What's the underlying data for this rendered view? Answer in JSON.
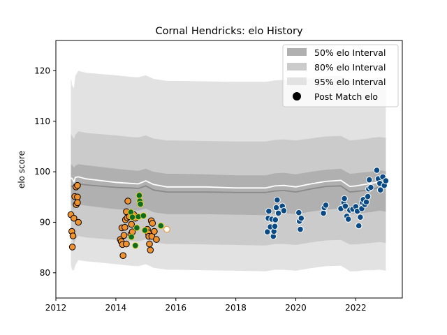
{
  "chart_data": {
    "type": "scatter",
    "title": "Cornal Hendricks: elo History",
    "xlabel": "",
    "ylabel": "elo score",
    "xlim": [
      2012.0,
      2023.55
    ],
    "ylim": [
      75.0,
      126.0
    ],
    "x_ticks": [
      2012,
      2014,
      2016,
      2018,
      2020,
      2022
    ],
    "x_tick_labels": [
      "2012",
      "2014",
      "2016",
      "2018",
      "2020",
      "2022"
    ],
    "y_ticks": [
      80,
      90,
      100,
      110,
      120
    ],
    "y_tick_labels": [
      "80",
      "90",
      "100",
      "110",
      "120"
    ],
    "legend_position": "top-right",
    "legend": [
      {
        "label": "50% elo Interval",
        "kind": "band",
        "color": "#b0b0b0"
      },
      {
        "label": "80% elo Interval",
        "kind": "band",
        "color": "#cbcbcb"
      },
      {
        "label": "95% elo Interval",
        "kind": "band",
        "color": "#e2e2e2"
      },
      {
        "label": "Post Match elo",
        "kind": "marker",
        "color": "#000000"
      }
    ],
    "bands": {
      "x": [
        2012.5,
        2012.55,
        2012.6,
        2012.65,
        2012.75,
        2013.0,
        2014.0,
        2014.5,
        2014.75,
        2015.0,
        2015.25,
        2015.7,
        2016.0,
        2017.0,
        2018.0,
        2019.0,
        2019.3,
        2019.6,
        2020.0,
        2020.5,
        2021.0,
        2021.5,
        2021.7,
        2021.8,
        2022.0,
        2022.3,
        2022.5,
        2022.8,
        2023.0
      ],
      "median": [
        97.2,
        97.1,
        96.9,
        97.4,
        97.6,
        97.4,
        96.9,
        96.8,
        96.7,
        97.2,
        96.4,
        96.0,
        96.0,
        96.0,
        95.9,
        95.9,
        96.2,
        96.3,
        96.0,
        96.6,
        97.1,
        97.2,
        96.4,
        96.0,
        96.1,
        96.3,
        96.4,
        97.0,
        96.8
      ],
      "mean": [
        98.8,
        98.6,
        98.0,
        98.9,
        99.0,
        98.6,
        97.9,
        97.7,
        97.6,
        98.2,
        97.5,
        97.0,
        97.0,
        97.0,
        96.8,
        96.8,
        97.2,
        97.3,
        97.0,
        97.6,
        98.1,
        98.3,
        97.5,
        97.1,
        97.2,
        97.5,
        97.7,
        98.0,
        97.6
      ],
      "p50": [
        [
          93.5,
          101.5
        ],
        [
          93.2,
          101.3
        ],
        [
          92.6,
          100.8
        ],
        [
          93.2,
          101.2
        ],
        [
          93.5,
          101.5
        ],
        [
          93.3,
          101.3
        ],
        [
          92.6,
          100.6
        ],
        [
          92.4,
          100.3
        ],
        [
          92.3,
          100.2
        ],
        [
          92.7,
          100.6
        ],
        [
          92.0,
          100.0
        ],
        [
          91.6,
          99.6
        ],
        [
          91.6,
          99.6
        ],
        [
          91.6,
          99.5
        ],
        [
          91.5,
          99.3
        ],
        [
          91.4,
          99.3
        ],
        [
          91.7,
          99.7
        ],
        [
          91.8,
          99.8
        ],
        [
          91.6,
          99.5
        ],
        [
          92.1,
          100.0
        ],
        [
          92.5,
          100.4
        ],
        [
          92.7,
          100.6
        ],
        [
          92.0,
          99.9
        ],
        [
          91.6,
          99.6
        ],
        [
          91.7,
          99.7
        ],
        [
          91.9,
          99.9
        ],
        [
          92.0,
          100.0
        ],
        [
          92.3,
          100.3
        ],
        [
          92.1,
          100.1
        ]
      ],
      "p80": [
        [
          87.5,
          107.5
        ],
        [
          86.5,
          107.0
        ],
        [
          85.5,
          106.5
        ],
        [
          86.5,
          107.3
        ],
        [
          87.3,
          108.0
        ],
        [
          87.0,
          107.7
        ],
        [
          86.5,
          107.2
        ],
        [
          86.3,
          106.9
        ],
        [
          86.2,
          106.8
        ],
        [
          86.6,
          107.2
        ],
        [
          86.0,
          106.6
        ],
        [
          85.7,
          106.2
        ],
        [
          85.7,
          106.2
        ],
        [
          85.6,
          106.1
        ],
        [
          85.5,
          106.0
        ],
        [
          85.4,
          106.0
        ],
        [
          85.7,
          106.3
        ],
        [
          85.7,
          106.4
        ],
        [
          85.5,
          106.2
        ],
        [
          86.0,
          106.6
        ],
        [
          86.4,
          107.0
        ],
        [
          86.5,
          107.1
        ],
        [
          85.9,
          106.5
        ],
        [
          85.6,
          106.2
        ],
        [
          85.6,
          106.3
        ],
        [
          85.8,
          106.5
        ],
        [
          85.9,
          106.7
        ],
        [
          86.1,
          106.9
        ],
        [
          85.9,
          106.7
        ]
      ],
      "p95": [
        [
          81.5,
          118.5
        ],
        [
          80.5,
          117.0
        ],
        [
          80.5,
          116.5
        ],
        [
          81.5,
          119.0
        ],
        [
          82.5,
          120.0
        ],
        [
          82.3,
          119.6
        ],
        [
          81.7,
          119.1
        ],
        [
          81.4,
          118.8
        ],
        [
          81.3,
          118.7
        ],
        [
          81.7,
          119.1
        ],
        [
          81.0,
          118.4
        ],
        [
          80.6,
          118.0
        ],
        [
          80.6,
          118.0
        ],
        [
          80.5,
          117.9
        ],
        [
          80.4,
          117.8
        ],
        [
          80.3,
          117.8
        ],
        [
          80.6,
          118.1
        ],
        [
          80.6,
          118.2
        ],
        [
          80.4,
          118.0
        ],
        [
          80.9,
          118.5
        ],
        [
          81.3,
          118.9
        ],
        [
          81.4,
          119.0
        ],
        [
          80.7,
          118.4
        ],
        [
          80.3,
          118.0
        ],
        [
          80.3,
          118.1
        ],
        [
          80.5,
          118.3
        ],
        [
          80.5,
          118.5
        ],
        [
          80.6,
          118.7
        ],
        [
          80.4,
          118.5
        ]
      ]
    },
    "points": [
      {
        "x": 2012.5,
        "y": 91.5,
        "color": "orange"
      },
      {
        "x": 2012.53,
        "y": 88.2,
        "color": "orange"
      },
      {
        "x": 2012.55,
        "y": 85.1,
        "color": "orange"
      },
      {
        "x": 2012.57,
        "y": 87.3,
        "color": "orange"
      },
      {
        "x": 2012.6,
        "y": 90.8,
        "color": "orange"
      },
      {
        "x": 2012.63,
        "y": 95.1,
        "color": "orange"
      },
      {
        "x": 2012.67,
        "y": 97.0,
        "color": "orange"
      },
      {
        "x": 2012.68,
        "y": 93.5,
        "color": "orange"
      },
      {
        "x": 2012.72,
        "y": 95.0,
        "color": "orange"
      },
      {
        "x": 2012.72,
        "y": 93.9,
        "color": "orange"
      },
      {
        "x": 2012.72,
        "y": 97.3,
        "color": "orange"
      },
      {
        "x": 2012.75,
        "y": 90.0,
        "color": "orange"
      },
      {
        "x": 2014.15,
        "y": 86.6,
        "color": "orange"
      },
      {
        "x": 2014.18,
        "y": 86.2,
        "color": "orange"
      },
      {
        "x": 2014.2,
        "y": 88.9,
        "color": "orange"
      },
      {
        "x": 2014.22,
        "y": 85.6,
        "color": "orange"
      },
      {
        "x": 2014.24,
        "y": 83.4,
        "color": "orange"
      },
      {
        "x": 2014.27,
        "y": 87.4,
        "color": "orange"
      },
      {
        "x": 2014.3,
        "y": 89.0,
        "color": "orange"
      },
      {
        "x": 2014.32,
        "y": 90.5,
        "color": "orange"
      },
      {
        "x": 2014.35,
        "y": 85.7,
        "color": "orange"
      },
      {
        "x": 2014.35,
        "y": 92.1,
        "color": "orange"
      },
      {
        "x": 2014.38,
        "y": 90.9,
        "color": "orange"
      },
      {
        "x": 2014.4,
        "y": 94.2,
        "color": "orange"
      },
      {
        "x": 2014.45,
        "y": 91.1,
        "color": "orange"
      },
      {
        "x": 2014.5,
        "y": 87.6,
        "color": "orange"
      },
      {
        "x": 2014.52,
        "y": 89.6,
        "color": "orange"
      },
      {
        "x": 2014.55,
        "y": 88.1,
        "color": "orange"
      },
      {
        "x": 2014.6,
        "y": 91.5,
        "color": "orange"
      },
      {
        "x": 2014.65,
        "y": 90.8,
        "color": "orange"
      },
      {
        "x": 2015.05,
        "y": 88.6,
        "color": "orange"
      },
      {
        "x": 2015.08,
        "y": 87.9,
        "color": "orange"
      },
      {
        "x": 2015.1,
        "y": 87.2,
        "color": "orange"
      },
      {
        "x": 2015.12,
        "y": 85.7,
        "color": "orange"
      },
      {
        "x": 2015.15,
        "y": 84.5,
        "color": "orange"
      },
      {
        "x": 2015.18,
        "y": 90.3,
        "color": "orange"
      },
      {
        "x": 2015.2,
        "y": 87.2,
        "color": "orange"
      },
      {
        "x": 2015.22,
        "y": 89.8,
        "color": "orange"
      },
      {
        "x": 2015.28,
        "y": 88.2,
        "color": "orange"
      },
      {
        "x": 2015.35,
        "y": 86.6,
        "color": "orange"
      },
      {
        "x": 2014.5,
        "y": 92.0,
        "color": "green"
      },
      {
        "x": 2014.52,
        "y": 87.1,
        "color": "green"
      },
      {
        "x": 2014.55,
        "y": 91.0,
        "color": "green"
      },
      {
        "x": 2014.65,
        "y": 85.4,
        "color": "green"
      },
      {
        "x": 2014.7,
        "y": 88.9,
        "color": "green"
      },
      {
        "x": 2014.75,
        "y": 91.1,
        "color": "green"
      },
      {
        "x": 2014.78,
        "y": 95.3,
        "color": "green"
      },
      {
        "x": 2014.8,
        "y": 94.2,
        "color": "green"
      },
      {
        "x": 2014.82,
        "y": 93.6,
        "color": "green"
      },
      {
        "x": 2014.92,
        "y": 91.3,
        "color": "green"
      },
      {
        "x": 2014.97,
        "y": 88.4,
        "color": "green"
      },
      {
        "x": 2015.5,
        "y": 89.3,
        "color": "green"
      },
      {
        "x": 2015.7,
        "y": 88.6,
        "color": "white"
      },
      {
        "x": 2019.05,
        "y": 88.1,
        "color": "blue"
      },
      {
        "x": 2019.08,
        "y": 90.8,
        "color": "blue"
      },
      {
        "x": 2019.1,
        "y": 92.2,
        "color": "blue"
      },
      {
        "x": 2019.15,
        "y": 89.1,
        "color": "blue"
      },
      {
        "x": 2019.2,
        "y": 90.6,
        "color": "blue"
      },
      {
        "x": 2019.25,
        "y": 87.2,
        "color": "blue"
      },
      {
        "x": 2019.27,
        "y": 88.2,
        "color": "blue"
      },
      {
        "x": 2019.3,
        "y": 89.2,
        "color": "blue"
      },
      {
        "x": 2019.32,
        "y": 90.5,
        "color": "blue"
      },
      {
        "x": 2019.35,
        "y": 92.9,
        "color": "blue"
      },
      {
        "x": 2019.38,
        "y": 94.4,
        "color": "blue"
      },
      {
        "x": 2019.42,
        "y": 91.8,
        "color": "blue"
      },
      {
        "x": 2019.55,
        "y": 93.2,
        "color": "blue"
      },
      {
        "x": 2019.6,
        "y": 92.3,
        "color": "blue"
      },
      {
        "x": 2020.1,
        "y": 91.9,
        "color": "blue"
      },
      {
        "x": 2020.12,
        "y": 90.2,
        "color": "blue"
      },
      {
        "x": 2020.15,
        "y": 88.6,
        "color": "blue"
      },
      {
        "x": 2020.18,
        "y": 90.8,
        "color": "blue"
      },
      {
        "x": 2020.92,
        "y": 91.8,
        "color": "blue"
      },
      {
        "x": 2020.95,
        "y": 92.9,
        "color": "blue"
      },
      {
        "x": 2021.0,
        "y": 93.4,
        "color": "blue"
      },
      {
        "x": 2021.5,
        "y": 92.7,
        "color": "blue"
      },
      {
        "x": 2021.6,
        "y": 93.9,
        "color": "blue"
      },
      {
        "x": 2021.62,
        "y": 94.7,
        "color": "blue"
      },
      {
        "x": 2021.65,
        "y": 93.2,
        "color": "blue"
      },
      {
        "x": 2021.7,
        "y": 91.2,
        "color": "blue"
      },
      {
        "x": 2021.75,
        "y": 90.6,
        "color": "blue"
      },
      {
        "x": 2021.8,
        "y": 92.4,
        "color": "blue"
      },
      {
        "x": 2021.9,
        "y": 92.6,
        "color": "blue"
      },
      {
        "x": 2022.0,
        "y": 93.1,
        "color": "blue"
      },
      {
        "x": 2022.05,
        "y": 92.2,
        "color": "blue"
      },
      {
        "x": 2022.1,
        "y": 89.3,
        "color": "blue"
      },
      {
        "x": 2022.15,
        "y": 91.0,
        "color": "blue"
      },
      {
        "x": 2022.2,
        "y": 92.7,
        "color": "blue"
      },
      {
        "x": 2022.22,
        "y": 93.9,
        "color": "blue"
      },
      {
        "x": 2022.25,
        "y": 94.5,
        "color": "blue"
      },
      {
        "x": 2022.3,
        "y": 93.5,
        "color": "blue"
      },
      {
        "x": 2022.35,
        "y": 94.0,
        "color": "blue"
      },
      {
        "x": 2022.4,
        "y": 95.1,
        "color": "blue"
      },
      {
        "x": 2022.43,
        "y": 96.6,
        "color": "blue"
      },
      {
        "x": 2022.45,
        "y": 98.4,
        "color": "blue"
      },
      {
        "x": 2022.5,
        "y": 96.9,
        "color": "blue"
      },
      {
        "x": 2022.7,
        "y": 100.3,
        "color": "blue"
      },
      {
        "x": 2022.75,
        "y": 98.6,
        "color": "blue"
      },
      {
        "x": 2022.8,
        "y": 97.7,
        "color": "blue"
      },
      {
        "x": 2022.82,
        "y": 96.4,
        "color": "blue"
      },
      {
        "x": 2022.9,
        "y": 99.0,
        "color": "blue"
      },
      {
        "x": 2022.95,
        "y": 97.3,
        "color": "blue"
      },
      {
        "x": 2023.0,
        "y": 98.2,
        "color": "blue"
      }
    ],
    "palette": {
      "orange": {
        "fill": "#f0922e",
        "stroke": "#000000"
      },
      "green": {
        "fill": "#0f6b1f",
        "stroke": "#e3d33a"
      },
      "white": {
        "fill": "#ffffff",
        "stroke": "#f0922e"
      },
      "blue": {
        "fill": "#0a4b85",
        "stroke": "#ffffff"
      },
      "median_line": "#8a8a8a",
      "mean_line": "#ffffff",
      "band50": "#b0b0b0",
      "band80": "#cbcbcb",
      "band95": "#e2e2e2"
    }
  }
}
